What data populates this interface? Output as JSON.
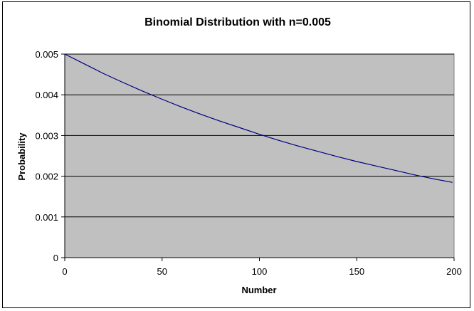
{
  "chart_data": {
    "type": "line",
    "title": "Binomial Distribution with n=0.005",
    "xlabel": "Number",
    "ylabel": "Probability",
    "xlim": [
      0,
      200
    ],
    "ylim": [
      0,
      0.005
    ],
    "x_ticks": [
      "0",
      "50",
      "100",
      "150",
      "200"
    ],
    "y_ticks": [
      "0",
      "0.001",
      "0.002",
      "0.003",
      "0.004",
      "0.005"
    ],
    "grid": "horizontal",
    "legend": "none",
    "series": [
      {
        "name": "Probability",
        "x": [
          0,
          10,
          20,
          30,
          40,
          50,
          60,
          70,
          80,
          90,
          100,
          110,
          120,
          130,
          140,
          150,
          160,
          170,
          180,
          190,
          199
        ],
        "values": [
          0.005,
          0.00476,
          0.00452,
          0.0043,
          0.00409,
          0.00389,
          0.0037,
          0.00352,
          0.00335,
          0.00319,
          0.00303,
          0.00288,
          0.00274,
          0.00261,
          0.00248,
          0.00236,
          0.00225,
          0.00214,
          0.00203,
          0.00193,
          0.00185
        ]
      }
    ],
    "colors": {
      "plot_background": "#c0c0c0",
      "line": "#000080",
      "grid": "#000000"
    }
  }
}
